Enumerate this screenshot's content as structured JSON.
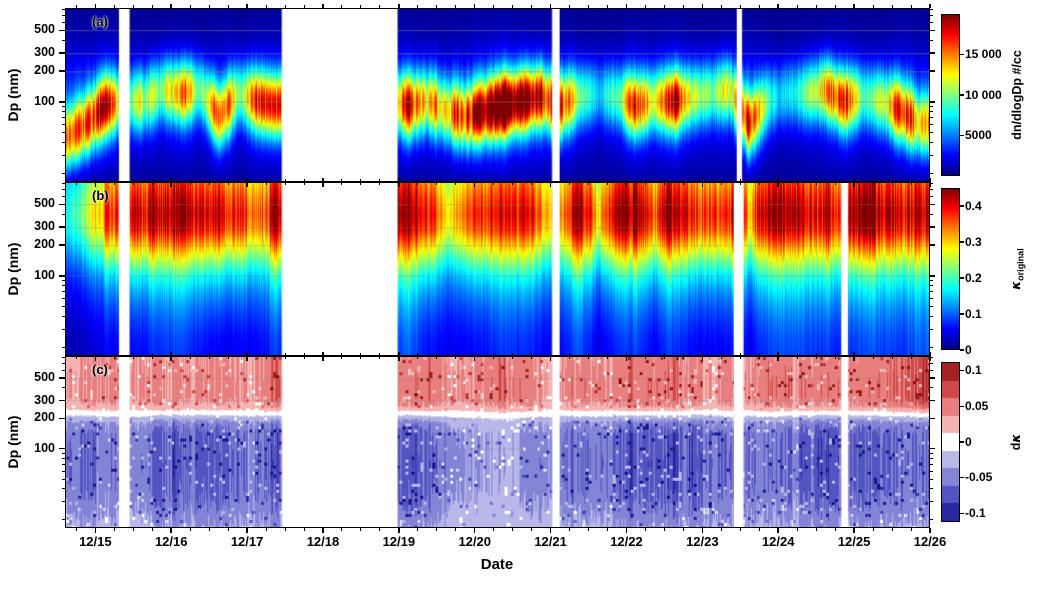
{
  "chart_data": {
    "type": "heatmap",
    "title": "",
    "x_axis": {
      "label": "Date",
      "min": 14.6,
      "max": 26.0,
      "major_ticks": [
        {
          "t": 15,
          "label": "12/15"
        },
        {
          "t": 16,
          "label": "12/16"
        },
        {
          "t": 17,
          "label": "12/17"
        },
        {
          "t": 18,
          "label": "12/18"
        },
        {
          "t": 19,
          "label": "12/19"
        },
        {
          "t": 20,
          "label": "12/20"
        },
        {
          "t": 21,
          "label": "12/21"
        },
        {
          "t": 22,
          "label": "12/22"
        },
        {
          "t": 23,
          "label": "12/23"
        },
        {
          "t": 24,
          "label": "12/24"
        },
        {
          "t": 25,
          "label": "12/25"
        },
        {
          "t": 26,
          "label": "12/26"
        }
      ],
      "minor_step_days": 0.25
    },
    "y_axis": {
      "label": "Dp (nm)",
      "scale": "log",
      "min": 17,
      "max": 800,
      "major_ticks": [
        {
          "d": 100,
          "label": "100"
        },
        {
          "d": 200,
          "label": "200"
        },
        {
          "d": 300,
          "label": "300"
        },
        {
          "d": 500,
          "label": "500"
        }
      ],
      "minor_ticks": [
        20,
        30,
        40,
        50,
        60,
        70,
        80,
        90,
        400,
        600,
        700,
        800
      ]
    },
    "time_grid": {
      "start": 14.625,
      "step": 0.25,
      "count": 46
    },
    "panels": [
      {
        "id": "a",
        "letter": "(a)",
        "quantity": "aerosol number size distribution",
        "colormap": "jet",
        "value_range": [
          0,
          20000
        ],
        "colorbar": {
          "label": "dn/dlogDp #/cc",
          "ticks": [
            {
              "v": 5000,
              "label": "5000"
            },
            {
              "v": 10000,
              "label": "10 000"
            },
            {
              "v": 15000,
              "label": "15 000"
            }
          ]
        },
        "data_gaps": [
          [
            15.3,
            15.44
          ],
          [
            17.45,
            18.98
          ],
          [
            21.02,
            21.12
          ],
          [
            23.46,
            23.53
          ]
        ],
        "ridge": {
          "sigma_decades": 0.21,
          "peak": [
            14000,
            15000,
            16000,
            9000,
            9000,
            8000,
            12000,
            7000,
            14000,
            8000,
            13000,
            15000,
            5000,
            5000,
            5000,
            5000,
            5000,
            5000,
            16000,
            10000,
            12000,
            14000,
            17000,
            19500,
            19500,
            15000,
            14000,
            8000,
            5000,
            6000,
            15000,
            8000,
            16000,
            9000,
            7000,
            10000,
            15000,
            6000,
            5000,
            7000,
            13000,
            15000,
            6000,
            9000,
            15000,
            12000
          ],
          "mode_nm": [
            45,
            60,
            90,
            100,
            100,
            130,
            120,
            130,
            70,
            120,
            100,
            90,
            100,
            100,
            100,
            100,
            100,
            100,
            90,
            100,
            80,
            70,
            80,
            90,
            100,
            110,
            90,
            110,
            120,
            110,
            90,
            100,
            100,
            110,
            120,
            130,
            60,
            100,
            120,
            120,
            130,
            100,
            110,
            100,
            80,
            60
          ]
        },
        "background_profile": {
          "d_nm": [
            17,
            25,
            35,
            50,
            70,
            100,
            140,
            200,
            280,
            400,
            560,
            800
          ],
          "dndlogdp": [
            800,
            1500,
            2000,
            2500,
            3000,
            3500,
            3500,
            3000,
            2000,
            1200,
            800,
            500
          ]
        }
      },
      {
        "id": "b",
        "letter": "(b)",
        "quantity": "hygroscopicity parameter kappa (original)",
        "colormap": "jet",
        "value_range": [
          0,
          0.45
        ],
        "colorbar": {
          "label_symbol": "κ",
          "label_subscript": "original",
          "ticks": [
            {
              "v": 0,
              "label": "0"
            },
            {
              "v": 0.1,
              "label": "0.1"
            },
            {
              "v": 0.2,
              "label": "0.2"
            },
            {
              "v": 0.3,
              "label": "0.3"
            },
            {
              "v": 0.4,
              "label": "0.4"
            }
          ]
        },
        "data_gaps": [
          [
            15.3,
            15.44
          ],
          [
            17.45,
            18.98
          ],
          [
            21.02,
            21.12
          ],
          [
            23.42,
            23.55
          ],
          [
            24.84,
            24.93
          ]
        ],
        "kappa_max": [
          0.18,
          0.25,
          0.35,
          0.4,
          0.42,
          0.45,
          0.45,
          0.4,
          0.42,
          0.38,
          0.32,
          0.45,
          0.4,
          0.4,
          0.4,
          0.4,
          0.4,
          0.4,
          0.46,
          0.4,
          0.3,
          0.34,
          0.38,
          0.42,
          0.4,
          0.36,
          0.3,
          0.46,
          0.3,
          0.44,
          0.46,
          0.36,
          0.46,
          0.42,
          0.36,
          0.4,
          0.34,
          0.44,
          0.46,
          0.45,
          0.44,
          0.42,
          0.45,
          0.46,
          0.44,
          0.46
        ],
        "kappa_min": [
          0.02,
          0.03,
          0.05,
          0.05,
          0.06,
          0.08,
          0.08,
          0.06,
          0.05,
          0.05,
          0.05,
          0.08,
          0.06,
          0.06,
          0.06,
          0.06,
          0.06,
          0.06,
          0.1,
          0.06,
          0.05,
          0.05,
          0.06,
          0.08,
          0.07,
          0.06,
          0.05,
          0.09,
          0.04,
          0.07,
          0.08,
          0.05,
          0.08,
          0.06,
          0.05,
          0.06,
          0.05,
          0.08,
          0.09,
          0.09,
          0.08,
          0.07,
          0.08,
          0.09,
          0.08,
          0.1
        ],
        "size_weight": {
          "d_nm": [
            17,
            25,
            35,
            50,
            70,
            100,
            140,
            200,
            280,
            400,
            560,
            800
          ],
          "w": [
            0,
            0.02,
            0.06,
            0.12,
            0.2,
            0.32,
            0.5,
            0.72,
            0.92,
            1.0,
            0.93,
            0.82
          ]
        }
      },
      {
        "id": "c",
        "letter": "(c)",
        "quantity": "kappa difference",
        "colormap": "red-white-blue diverging",
        "value_range": [
          -0.1125,
          0.1125
        ],
        "level_step": 0.025,
        "colorbar": {
          "label_prefix": "d",
          "label_symbol": "κ",
          "ticks": [
            {
              "v": -0.1,
              "label": "-0.1"
            },
            {
              "v": -0.05,
              "label": "-0.05"
            },
            {
              "v": 0,
              "label": "0"
            },
            {
              "v": 0.05,
              "label": "0.05"
            },
            {
              "v": 0.1,
              "label": "0.1"
            }
          ]
        },
        "data_gaps": [
          [
            15.3,
            15.44
          ],
          [
            17.45,
            18.98
          ],
          [
            21.02,
            21.12
          ],
          [
            23.42,
            23.55
          ],
          [
            24.84,
            24.93
          ]
        ],
        "dk_positive": [
          0.03,
          0.04,
          0.05,
          0.04,
          0.04,
          0.04,
          0.05,
          0.04,
          0.05,
          0.04,
          0.04,
          0.06,
          0.05,
          0.05,
          0.05,
          0.05,
          0.05,
          0.05,
          0.05,
          0.06,
          0.04,
          0.04,
          0.05,
          0.06,
          0.05,
          0.04,
          0.04,
          0.05,
          0.04,
          0.05,
          0.06,
          0.05,
          0.06,
          0.05,
          0.04,
          0.05,
          0.04,
          0.05,
          0.05,
          0.05,
          0.05,
          0.06,
          0.05,
          0.05,
          0.07,
          0.08
        ],
        "dk_negative": [
          -0.05,
          -0.06,
          -0.06,
          -0.05,
          -0.05,
          -0.07,
          -0.08,
          -0.07,
          -0.08,
          -0.06,
          -0.06,
          -0.07,
          -0.06,
          -0.06,
          -0.06,
          -0.06,
          -0.06,
          -0.06,
          -0.08,
          -0.07,
          -0.05,
          -0.04,
          -0.04,
          -0.03,
          -0.04,
          -0.05,
          -0.06,
          -0.06,
          -0.05,
          -0.07,
          -0.08,
          -0.07,
          -0.08,
          -0.08,
          -0.07,
          -0.06,
          -0.06,
          -0.05,
          -0.06,
          -0.07,
          -0.08,
          -0.08,
          -0.07,
          -0.06,
          -0.07,
          -0.06
        ],
        "positive_weight": {
          "d_nm": [
            17,
            100,
            180,
            220,
            260,
            320,
            450,
            600,
            800
          ],
          "w": [
            0,
            0,
            0,
            0.25,
            0.7,
            1.0,
            1.0,
            0.95,
            0.9
          ]
        },
        "negative_weight": {
          "d_nm": [
            17,
            25,
            40,
            70,
            140,
            180,
            220,
            260,
            800
          ],
          "w": [
            0.55,
            0.75,
            0.95,
            1.0,
            0.95,
            0.7,
            0.25,
            0,
            0
          ]
        }
      }
    ]
  },
  "colors": {
    "axis": "#000000",
    "grid": "#808080",
    "background": "#ffffff",
    "jet_stops": [
      [
        0,
        "#000080"
      ],
      [
        0.125,
        "#0000ff"
      ],
      [
        0.375,
        "#00ffff"
      ],
      [
        0.625,
        "#ffff00"
      ],
      [
        0.875,
        "#ff0000"
      ],
      [
        1,
        "#800000"
      ]
    ],
    "diverging_stops": [
      [
        0,
        "#16168c"
      ],
      [
        0.11,
        "#3a3ab4"
      ],
      [
        0.22,
        "#6a6acd"
      ],
      [
        0.33,
        "#9b9be0"
      ],
      [
        0.44,
        "#cfcff2"
      ],
      [
        0.5,
        "#ffffff"
      ],
      [
        0.56,
        "#f7caca"
      ],
      [
        0.67,
        "#f09a9a"
      ],
      [
        0.78,
        "#e06060"
      ],
      [
        0.89,
        "#c03030"
      ],
      [
        1,
        "#8b1212"
      ]
    ]
  }
}
